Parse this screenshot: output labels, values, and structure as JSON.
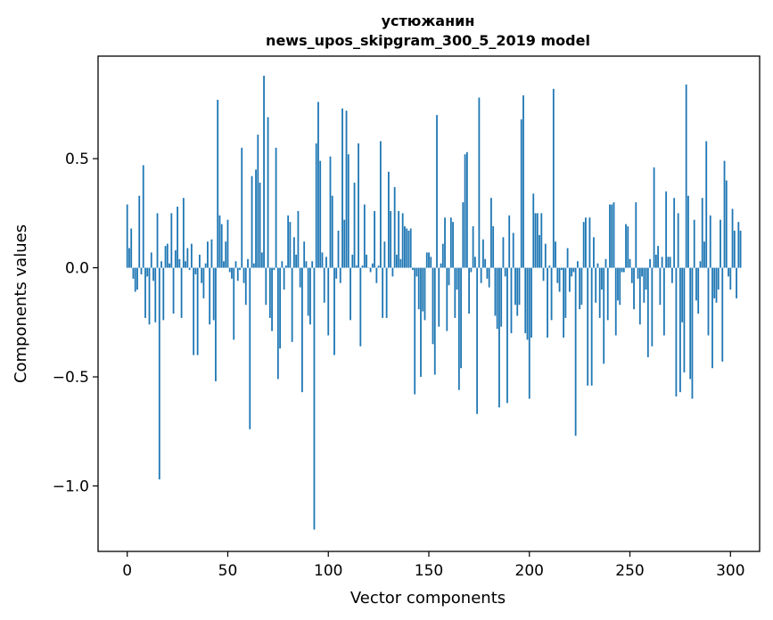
{
  "chart_data": {
    "type": "bar",
    "title": "устюжанин",
    "subtitle": "news_upos_skipgram_300_5_2019 model",
    "xlabel": "Vector components",
    "ylabel": "Components values",
    "xlim": [
      -14.5,
      314.5
    ],
    "ylim": [
      -1.3,
      0.97
    ],
    "xticks": [
      0,
      50,
      100,
      150,
      200,
      250,
      300
    ],
    "xtick_labels": [
      "0",
      "50",
      "100",
      "150",
      "200",
      "250",
      "300"
    ],
    "yticks": [
      -1.0,
      -0.5,
      0.0,
      0.5
    ],
    "ytick_labels": [
      "−1.0",
      "−0.5",
      "0.0",
      "0.5"
    ],
    "grid": false,
    "bar_color": "#1f77b4",
    "values": [
      0.29,
      0.09,
      0.18,
      -0.05,
      -0.11,
      -0.1,
      0.33,
      -0.03,
      0.47,
      -0.23,
      -0.04,
      -0.26,
      0.07,
      -0.06,
      -0.25,
      0.25,
      -0.97,
      0.03,
      -0.24,
      0.1,
      0.11,
      0.02,
      0.25,
      -0.21,
      0.08,
      0.28,
      0.04,
      -0.23,
      0.32,
      0.03,
      0.09,
      -0.01,
      0.11,
      -0.4,
      -0.03,
      -0.4,
      0.06,
      -0.07,
      -0.14,
      0.02,
      0.12,
      -0.26,
      0.13,
      -0.24,
      -0.52,
      0.77,
      0.24,
      0.2,
      0.03,
      0.12,
      0.22,
      -0.02,
      -0.05,
      -0.33,
      0.03,
      -0.06,
      -0.01,
      0.55,
      -0.07,
      -0.17,
      0.04,
      -0.74,
      0.42,
      0.02,
      0.45,
      0.61,
      0.39,
      0.07,
      0.88,
      -0.17,
      0.69,
      -0.23,
      -0.29,
      -0.01,
      0.55,
      -0.51,
      -0.37,
      0.03,
      -0.1,
      0.01,
      0.24,
      0.21,
      -0.34,
      0.14,
      0.06,
      0.26,
      -0.09,
      -0.57,
      0.12,
      0.03,
      -0.22,
      -0.26,
      0.03,
      -1.2,
      0.57,
      0.76,
      0.49,
      0.07,
      -0.16,
      0.05,
      -0.31,
      0.51,
      0.33,
      -0.4,
      -0.05,
      0.17,
      -0.07,
      0.73,
      0.22,
      0.72,
      0.52,
      -0.24,
      0.06,
      0.39,
      0.01,
      0.57,
      -0.36,
      0.01,
      0.29,
      0.06,
      0.0,
      -0.02,
      0.02,
      0.26,
      -0.07,
      0.01,
      0.58,
      -0.23,
      0.12,
      -0.23,
      0.44,
      0.26,
      -0.04,
      0.37,
      0.06,
      0.26,
      0.04,
      0.25,
      0.19,
      0.18,
      0.17,
      0.18,
      -0.01,
      -0.58,
      -0.04,
      -0.19,
      -0.5,
      -0.2,
      -0.24,
      0.07,
      0.07,
      0.05,
      -0.35,
      -0.49,
      0.7,
      -0.27,
      0.02,
      0.11,
      0.23,
      -0.29,
      -0.08,
      0.23,
      0.21,
      -0.23,
      -0.1,
      -0.56,
      -0.46,
      0.3,
      0.52,
      0.53,
      -0.21,
      -0.02,
      0.19,
      0.05,
      -0.67,
      0.78,
      -0.07,
      0.13,
      0.04,
      -0.05,
      -0.09,
      0.32,
      0.19,
      -0.22,
      -0.28,
      -0.64,
      -0.27,
      0.14,
      -0.04,
      -0.62,
      0.24,
      -0.3,
      0.16,
      -0.17,
      -0.22,
      -0.17,
      0.68,
      0.79,
      -0.3,
      -0.33,
      -0.6,
      -0.32,
      0.34,
      0.25,
      0.25,
      0.15,
      0.25,
      -0.06,
      0.11,
      -0.32,
      0.01,
      -0.24,
      0.82,
      0.12,
      -0.07,
      -0.11,
      -0.01,
      -0.32,
      -0.23,
      0.09,
      -0.11,
      -0.04,
      -0.02,
      -0.77,
      0.03,
      -0.19,
      -0.17,
      0.21,
      0.23,
      -0.54,
      0.23,
      -0.54,
      0.14,
      -0.16,
      0.02,
      -0.23,
      -0.1,
      -0.44,
      0.04,
      -0.24,
      0.29,
      0.29,
      0.3,
      -0.31,
      -0.15,
      -0.17,
      -0.02,
      -0.02,
      0.2,
      0.19,
      0.04,
      -0.07,
      -0.19,
      0.3,
      -0.05,
      -0.26,
      -0.04,
      -0.16,
      -0.1,
      -0.41,
      0.04,
      -0.36,
      0.46,
      0.06,
      0.1,
      -0.17,
      0.05,
      -0.31,
      0.35,
      0.05,
      0.05,
      -0.07,
      0.32,
      -0.59,
      0.25,
      -0.57,
      -0.25,
      -0.48,
      0.84,
      0.33,
      -0.51,
      -0.6,
      0.22,
      -0.15,
      -0.21,
      0.03,
      0.32,
      0.12,
      0.58,
      -0.31,
      0.24,
      -0.46,
      -0.14,
      -0.16,
      -0.1,
      0.22,
      -0.43,
      0.49,
      0.4,
      -0.04,
      -0.1,
      0.27,
      0.17,
      -0.14,
      0.21,
      0.17
    ]
  }
}
